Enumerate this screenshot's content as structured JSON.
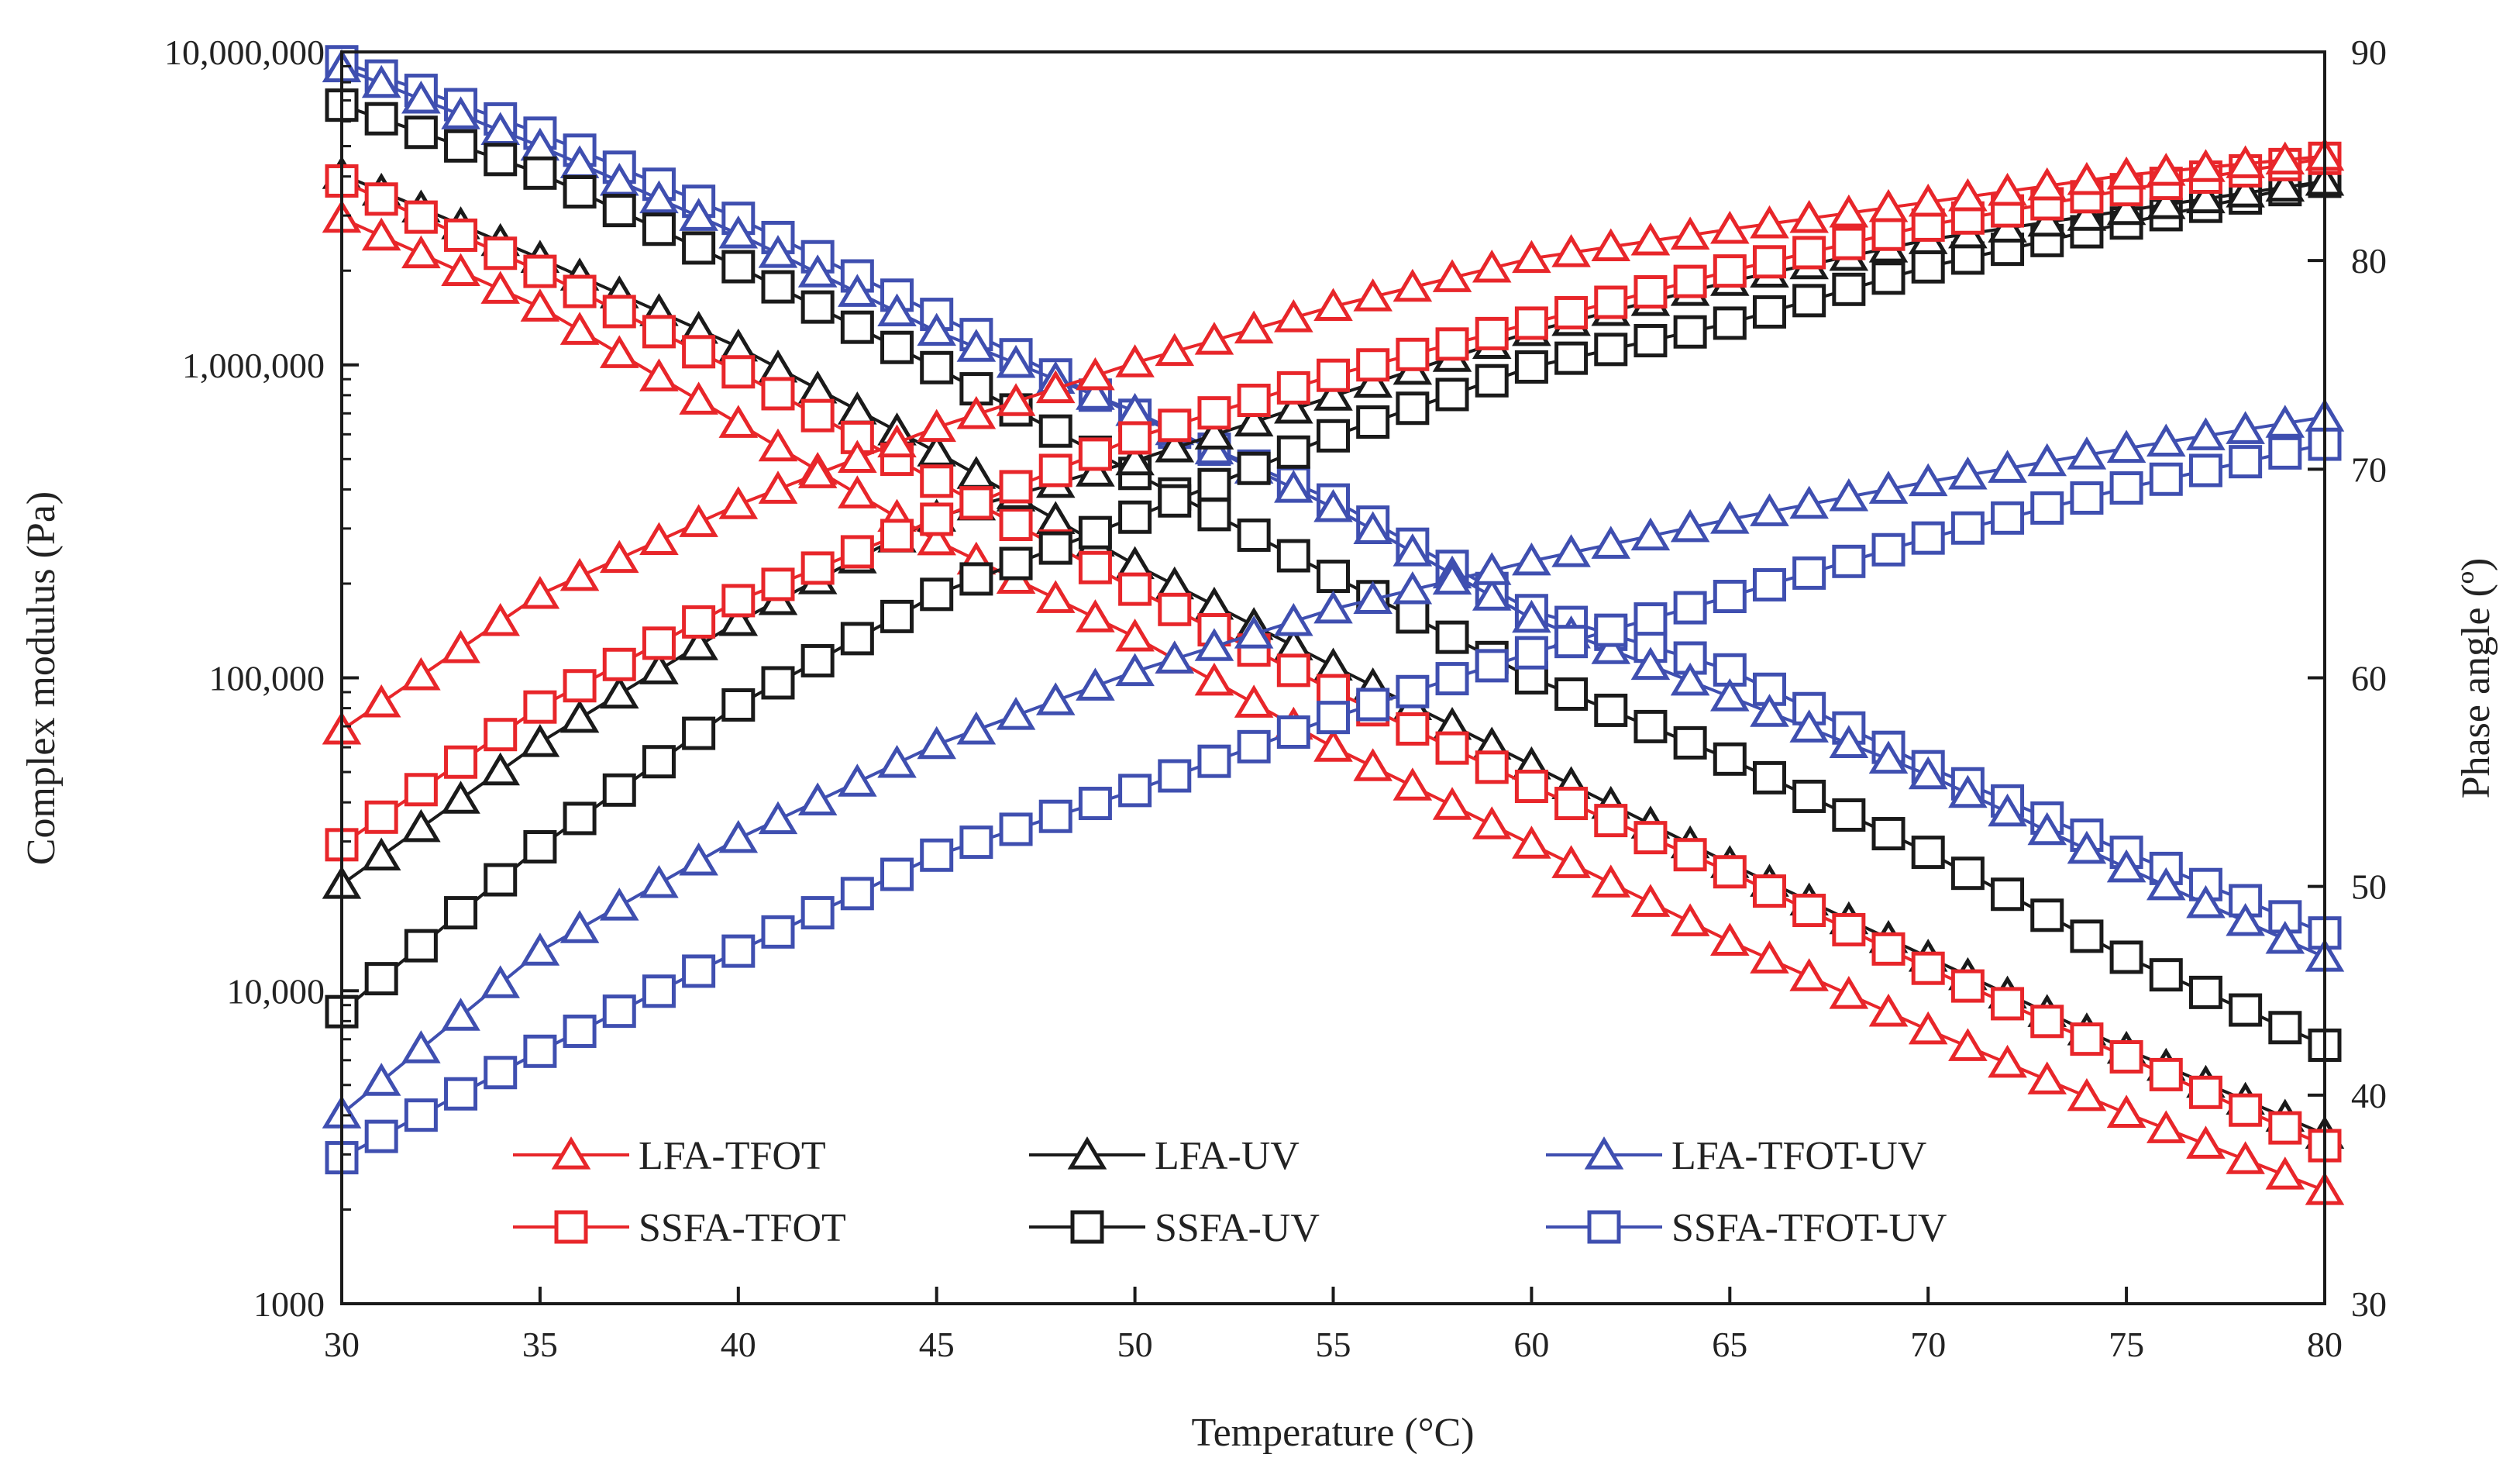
{
  "chart_data": {
    "type": "line",
    "title": "",
    "xlabel": "Temperature (°C)",
    "ylabel": "Complex modulus (Pa)",
    "y2label": "Phase angle (º)",
    "xlim": [
      30,
      80
    ],
    "ylim": [
      1000,
      10000000
    ],
    "yscale": "log",
    "y2lim": [
      30,
      90
    ],
    "grid": false,
    "legend_position": "bottom-inside",
    "marker_step": 1,
    "x": [
      30,
      35,
      40,
      45,
      50,
      55,
      60,
      65,
      70,
      75,
      80
    ],
    "x_ticks": [
      "30",
      "35",
      "40",
      "45",
      "50",
      "55",
      "60",
      "65",
      "70",
      "75",
      "80"
    ],
    "y_ticks": [
      "1000",
      "10,000",
      "100,000",
      "1,000,000",
      "10,000,000"
    ],
    "y2_ticks": [
      "30",
      "40",
      "50",
      "60",
      "70",
      "80",
      "90"
    ],
    "series": [
      {
        "name": "LFA-TFOT",
        "color": "#e8262a",
        "marker": "triangle",
        "quantity": "modulus",
        "axis": "left",
        "values": [
          2940000,
          1530000,
          650000,
          274000,
          135000,
          60000,
          29400,
          14400,
          7500,
          4060,
          2300
        ]
      },
      {
        "name": "LFA-UV",
        "color": "#1a1a1a",
        "marker": "triangle",
        "quantity": "modulus",
        "axis": "left",
        "values": [
          4060000,
          2190000,
          1140000,
          527000,
          230000,
          109000,
          52700,
          25500,
          12800,
          6500,
          3480
        ]
      },
      {
        "name": "LFA-TFOT-UV",
        "color": "#3f4fb0",
        "marker": "triangle",
        "quantity": "modulus",
        "axis": "left",
        "values": [
          8900000,
          5000000,
          2620000,
          1280000,
          710000,
          350000,
          155000,
          87000,
          49000,
          24700,
          12800
        ]
      },
      {
        "name": "SSFA-TFOT",
        "color": "#e8262a",
        "marker": "square",
        "quantity": "modulus",
        "axis": "left",
        "values": [
          3870000,
          1990000,
          950000,
          425000,
          192000,
          91000,
          45000,
          24000,
          11800,
          6150,
          3200
        ]
      },
      {
        "name": "SSFA-UV",
        "color": "#1a1a1a",
        "marker": "square",
        "quantity": "modulus",
        "axis": "left",
        "values": [
          6760000,
          4100000,
          2060000,
          980000,
          450000,
          211000,
          100000,
          55000,
          27700,
          12800,
          6700
        ]
      },
      {
        "name": "SSFA-TFOT-UV",
        "color": "#3f4fb0",
        "marker": "square",
        "quantity": "modulus",
        "axis": "left",
        "values": [
          9300000,
          5500000,
          2940000,
          1450000,
          690000,
          370000,
          164000,
          106000,
          52000,
          27700,
          15300
        ]
      },
      {
        "name": "LFA-TFOT",
        "color": "#e8262a",
        "marker": "triangle",
        "quantity": "phase angle",
        "axis": "right",
        "values": [
          57.5,
          64.0,
          68.3,
          72.0,
          75.1,
          77.8,
          80.1,
          81.5,
          82.8,
          84.1,
          85.0
        ]
      },
      {
        "name": "LFA-UV",
        "color": "#1a1a1a",
        "marker": "triangle",
        "quantity": "phase angle",
        "axis": "right",
        "values": [
          50.1,
          56.9,
          62.7,
          67.7,
          70.4,
          73.5,
          76.6,
          79.0,
          81.0,
          82.4,
          83.8
        ]
      },
      {
        "name": "LFA-TFOT-UV",
        "color": "#3f4fb0",
        "marker": "triangle",
        "quantity": "phase angle",
        "axis": "right",
        "values": [
          39.1,
          46.9,
          52.3,
          56.8,
          60.3,
          63.3,
          65.6,
          67.6,
          69.4,
          71.0,
          72.5
        ]
      },
      {
        "name": "SSFA-TFOT",
        "color": "#e8262a",
        "marker": "square",
        "quantity": "phase angle",
        "axis": "right",
        "values": [
          52.0,
          58.6,
          63.7,
          67.6,
          71.5,
          74.5,
          77.0,
          79.5,
          81.7,
          83.4,
          84.9
        ]
      },
      {
        "name": "SSFA-UV",
        "color": "#1a1a1a",
        "marker": "square",
        "quantity": "phase angle",
        "axis": "right",
        "values": [
          44.0,
          51.9,
          58.7,
          64.0,
          67.7,
          71.6,
          74.9,
          77.0,
          79.7,
          81.8,
          83.8
        ]
      },
      {
        "name": "SSFA-TFOT-UV",
        "color": "#3f4fb0",
        "marker": "square",
        "quantity": "phase angle",
        "axis": "right",
        "values": [
          37.0,
          42.1,
          46.9,
          51.5,
          54.6,
          58.1,
          61.2,
          63.9,
          66.7,
          69.1,
          71.2
        ]
      }
    ],
    "legend": [
      {
        "label": "LFA-TFOT",
        "color": "#e8262a",
        "marker": "triangle"
      },
      {
        "label": "LFA-UV",
        "color": "#1a1a1a",
        "marker": "triangle"
      },
      {
        "label": "LFA-TFOT-UV",
        "color": "#3f4fb0",
        "marker": "triangle"
      },
      {
        "label": "SSFA-TFOT",
        "color": "#e8262a",
        "marker": "square"
      },
      {
        "label": "SSFA-UV",
        "color": "#1a1a1a",
        "marker": "square"
      },
      {
        "label": "SSFA-TFOT-UV",
        "color": "#3f4fb0",
        "marker": "square"
      }
    ]
  }
}
